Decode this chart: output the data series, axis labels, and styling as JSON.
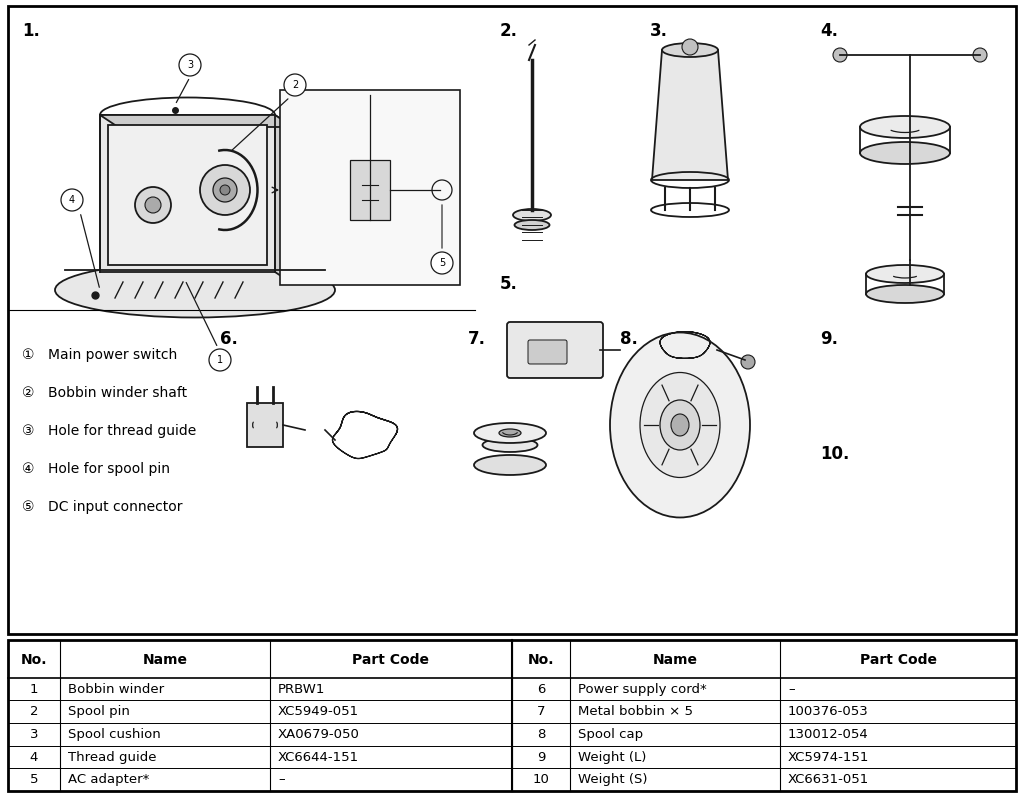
{
  "bg_color": "#ffffff",
  "table_data": [
    [
      "1",
      "Bobbin winder",
      "PRBW1",
      "6",
      "Power supply cord*",
      "–"
    ],
    [
      "2",
      "Spool pin",
      "XC5949-051",
      "7",
      "Metal bobbin × 5",
      "100376-053"
    ],
    [
      "3",
      "Spool cushion",
      "XA0679-050",
      "8",
      "Spool cap",
      "130012-054"
    ],
    [
      "4",
      "Thread guide",
      "XC6644-151",
      "9",
      "Weight (L)",
      "XC5974-151"
    ],
    [
      "5",
      "AC adapter*",
      "–",
      "10",
      "Weight (S)",
      "XC6631-051"
    ]
  ],
  "legend_items": [
    [
      "①",
      "Main power switch"
    ],
    [
      "②",
      "Bobbin winder shaft"
    ],
    [
      "③",
      "Hole for thread guide"
    ],
    [
      "④",
      "Hole for spool pin"
    ],
    [
      "⑤",
      "DC input connector"
    ]
  ]
}
